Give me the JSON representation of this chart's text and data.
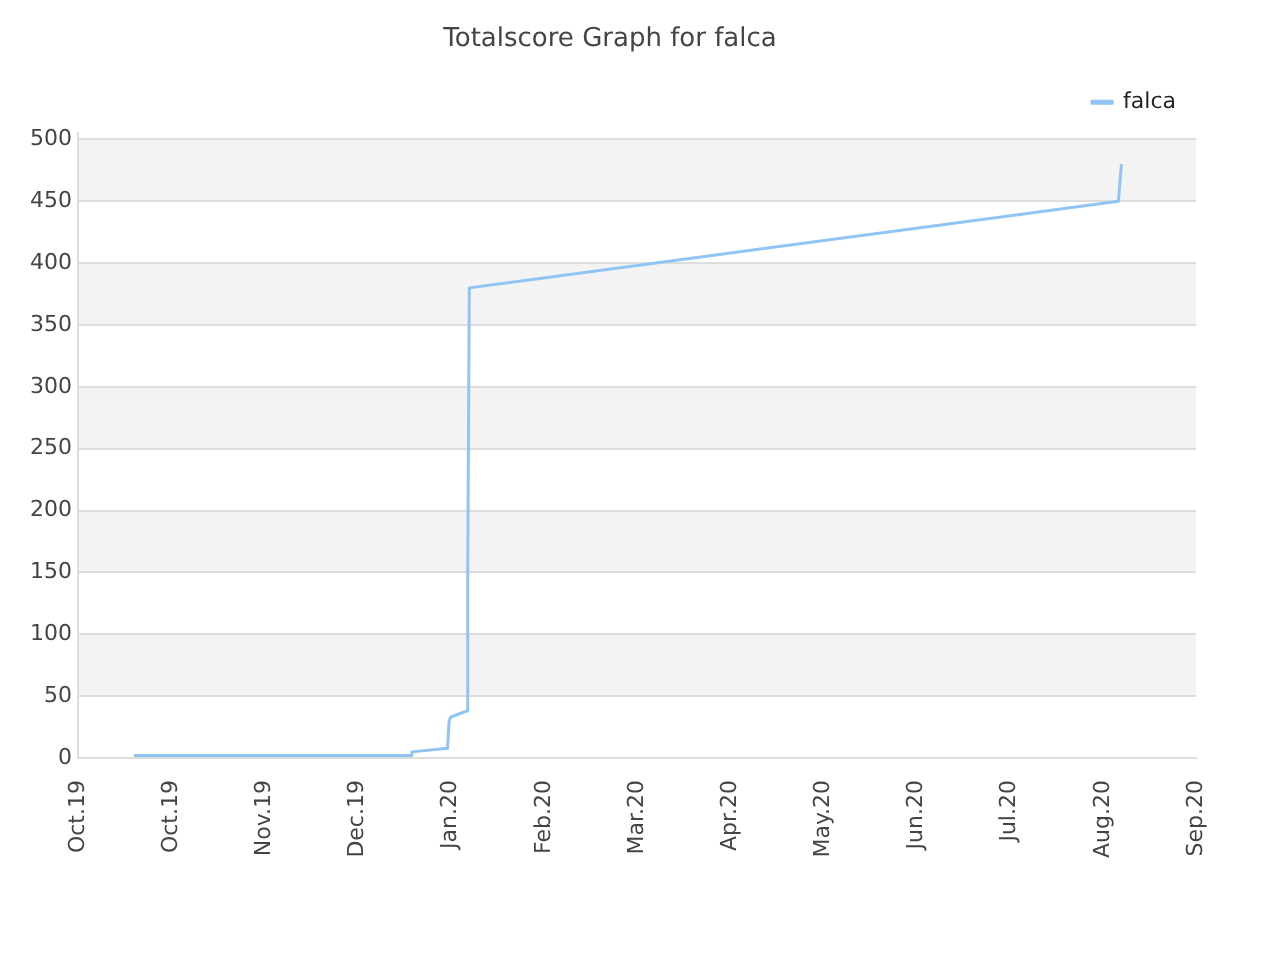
{
  "chart_data": {
    "type": "line",
    "title": "Totalscore Graph for falca",
    "x": [
      "2019-10-19",
      "2020-01-16",
      "2020-01-16T12:00",
      "2020-01-28",
      "2020-01-28T12:00",
      "2020-01-29",
      "2020-01-31",
      "2020-02-03",
      "2020-02-03T12:00",
      "2020-02-04",
      "2020-08-31",
      "2020-09-01"
    ],
    "series": [
      {
        "name": "falca",
        "color": "#90c4f4",
        "values": [
          2,
          2,
          5,
          8,
          30,
          33,
          35,
          38,
          150,
          380,
          450,
          480
        ]
      }
    ],
    "xlim": [
      "2019-10-01",
      "2020-09-25"
    ],
    "xticks": [
      {
        "value": "2019-10-01",
        "label": "Oct.19"
      },
      {
        "value": "2019-10-31",
        "label": "Oct.19"
      },
      {
        "value": "2019-11-30",
        "label": "Nov.19"
      },
      {
        "value": "2019-12-30",
        "label": "Dec.19"
      },
      {
        "value": "2020-01-29",
        "label": "Jan.20"
      },
      {
        "value": "2020-02-28",
        "label": "Feb.20"
      },
      {
        "value": "2020-03-29",
        "label": "Mar.20"
      },
      {
        "value": "2020-04-28",
        "label": "Apr.20"
      },
      {
        "value": "2020-05-28",
        "label": "May.20"
      },
      {
        "value": "2020-06-27",
        "label": "Jun.20"
      },
      {
        "value": "2020-07-27",
        "label": "Jul.20"
      },
      {
        "value": "2020-08-26",
        "label": "Aug.20"
      },
      {
        "value": "2020-09-25",
        "label": "Sep.20"
      }
    ],
    "ylim": [
      0,
      505
    ],
    "yticks": [
      0,
      50,
      100,
      150,
      200,
      250,
      300,
      350,
      400,
      450,
      500
    ],
    "grid": "y",
    "legend": "top right",
    "marker": "none",
    "line_style": "solid"
  }
}
